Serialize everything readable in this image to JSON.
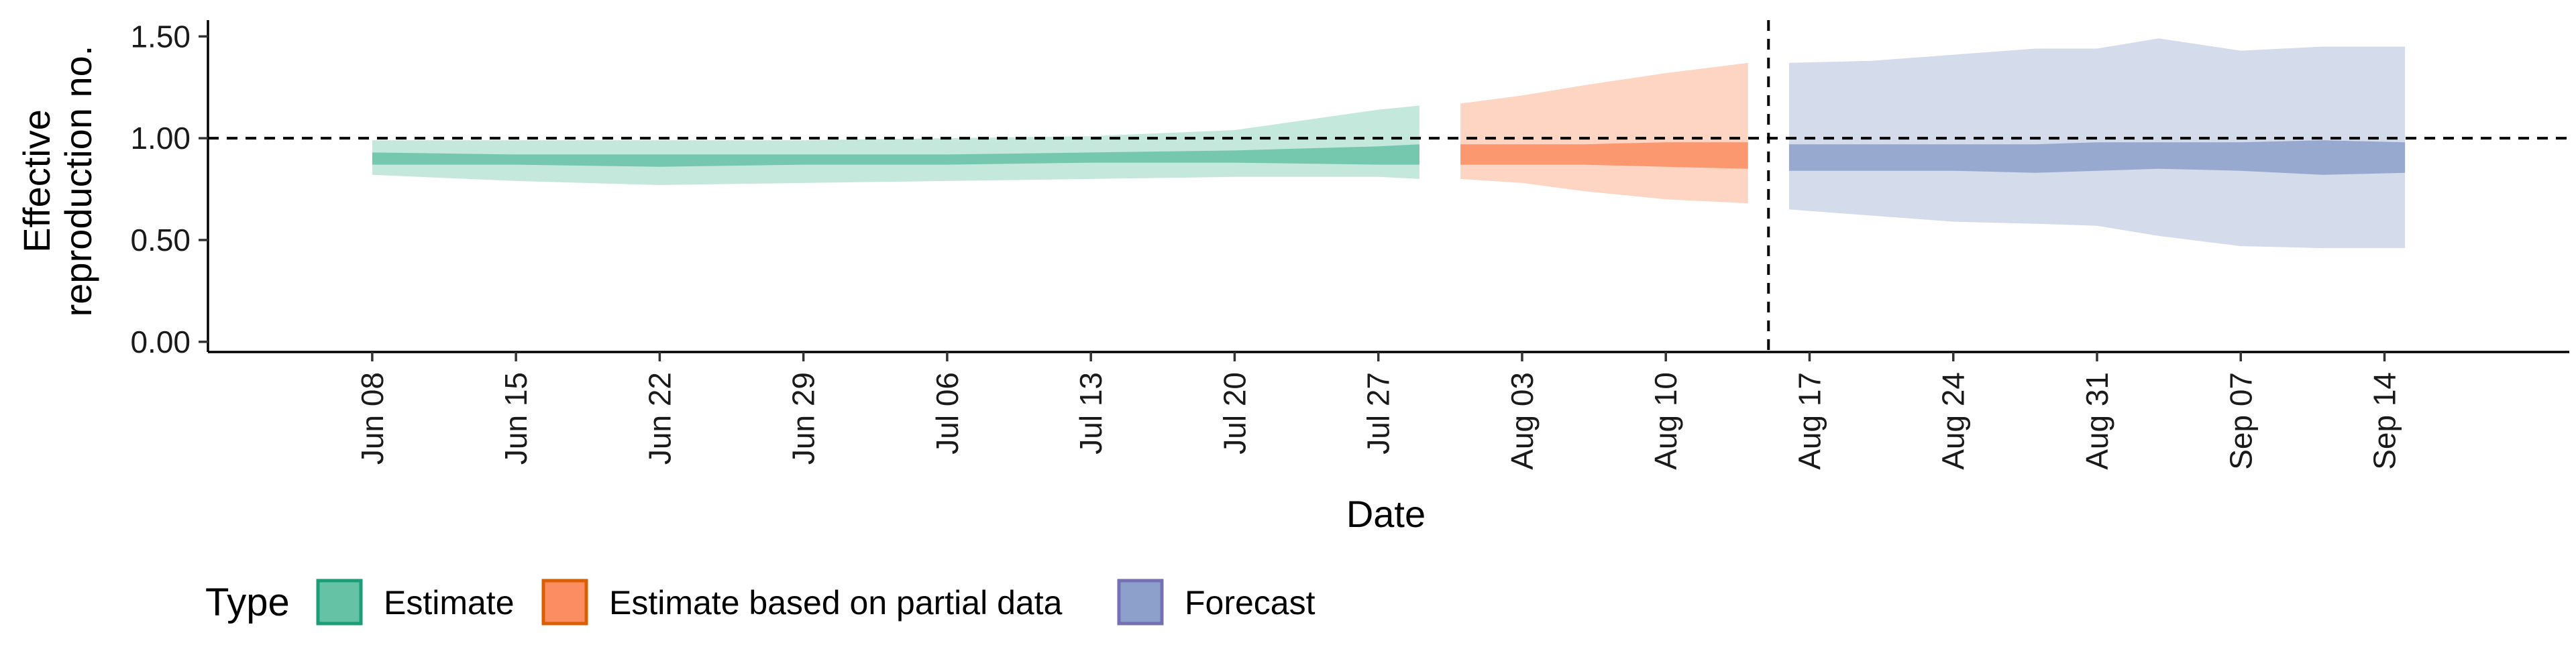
{
  "chart_data": {
    "type": "area",
    "title": "",
    "xlabel": "Date",
    "ylabel_lines": [
      "Effective",
      "reproduction no."
    ],
    "ylim": [
      -0.05,
      1.58
    ],
    "y_ticks": [
      0,
      0.5,
      1,
      1.5
    ],
    "y_tick_labels": [
      "0.00",
      "0.50",
      "1.00",
      "1.50"
    ],
    "x_range": [
      "2020-05-31",
      "2020-09-23"
    ],
    "x_ticks": [
      "2020-06-08",
      "2020-06-15",
      "2020-06-22",
      "2020-06-29",
      "2020-07-06",
      "2020-07-13",
      "2020-07-20",
      "2020-07-27",
      "2020-08-03",
      "2020-08-10",
      "2020-08-17",
      "2020-08-24",
      "2020-08-31",
      "2020-09-07",
      "2020-09-14"
    ],
    "x_tick_labels": [
      "Jun 08",
      "Jun 15",
      "Jun 22",
      "Jun 29",
      "Jul 06",
      "Jul 13",
      "Jul 20",
      "Jul 27",
      "Aug 03",
      "Aug 10",
      "Aug 17",
      "Aug 24",
      "Aug 31",
      "Sep 07",
      "Sep 14"
    ],
    "reference_line_y": 1.0,
    "forecast_date_line": "2020-08-15",
    "grid": false,
    "legend": {
      "position": "bottom-left",
      "title": "Type",
      "entries": [
        "Estimate",
        "Estimate based on partial data",
        "Forecast"
      ]
    },
    "series": [
      {
        "name": "Estimate",
        "color": "#1b9e77",
        "fill": "#66c2a5",
        "points": [
          {
            "date": "2020-06-08",
            "lower_90": 0.82,
            "lower_50": 0.87,
            "upper_50": 0.93,
            "upper_90": 0.99
          },
          {
            "date": "2020-06-15",
            "lower_90": 0.79,
            "lower_50": 0.87,
            "upper_50": 0.92,
            "upper_90": 0.99
          },
          {
            "date": "2020-06-22",
            "lower_90": 0.77,
            "lower_50": 0.86,
            "upper_50": 0.92,
            "upper_90": 0.99
          },
          {
            "date": "2020-06-29",
            "lower_90": 0.78,
            "lower_50": 0.87,
            "upper_50": 0.92,
            "upper_90": 0.99
          },
          {
            "date": "2020-07-06",
            "lower_90": 0.79,
            "lower_50": 0.87,
            "upper_50": 0.92,
            "upper_90": 1.0
          },
          {
            "date": "2020-07-13",
            "lower_90": 0.8,
            "lower_50": 0.88,
            "upper_50": 0.93,
            "upper_90": 1.01
          },
          {
            "date": "2020-07-20",
            "lower_90": 0.81,
            "lower_50": 0.88,
            "upper_50": 0.94,
            "upper_90": 1.04
          },
          {
            "date": "2020-07-27",
            "lower_90": 0.81,
            "lower_50": 0.87,
            "upper_50": 0.96,
            "upper_90": 1.14
          },
          {
            "date": "2020-07-29",
            "lower_90": 0.8,
            "lower_50": 0.87,
            "upper_50": 0.97,
            "upper_90": 1.16
          }
        ]
      },
      {
        "name": "Estimate based on partial data",
        "color": "#d95f02",
        "fill": "#fc8d62",
        "points": [
          {
            "date": "2020-07-31",
            "lower_90": 0.8,
            "lower_50": 0.87,
            "upper_50": 0.97,
            "upper_90": 1.17
          },
          {
            "date": "2020-08-03",
            "lower_90": 0.78,
            "lower_50": 0.87,
            "upper_50": 0.97,
            "upper_90": 1.21
          },
          {
            "date": "2020-08-06",
            "lower_90": 0.74,
            "lower_50": 0.87,
            "upper_50": 0.97,
            "upper_90": 1.26
          },
          {
            "date": "2020-08-10",
            "lower_90": 0.7,
            "lower_50": 0.86,
            "upper_50": 0.98,
            "upper_90": 1.32
          },
          {
            "date": "2020-08-14",
            "lower_90": 0.68,
            "lower_50": 0.85,
            "upper_50": 0.98,
            "upper_90": 1.37
          }
        ]
      },
      {
        "name": "Forecast",
        "color": "#7570b3",
        "fill": "#8da0cb",
        "points": [
          {
            "date": "2020-08-16",
            "lower_90": 0.65,
            "lower_50": 0.84,
            "upper_50": 0.97,
            "upper_90": 1.37
          },
          {
            "date": "2020-08-20",
            "lower_90": 0.62,
            "lower_50": 0.84,
            "upper_50": 0.97,
            "upper_90": 1.38
          },
          {
            "date": "2020-08-24",
            "lower_90": 0.59,
            "lower_50": 0.84,
            "upper_50": 0.97,
            "upper_90": 1.41
          },
          {
            "date": "2020-08-28",
            "lower_90": 0.58,
            "lower_50": 0.83,
            "upper_50": 0.97,
            "upper_90": 1.44
          },
          {
            "date": "2020-08-31",
            "lower_90": 0.57,
            "lower_50": 0.84,
            "upper_50": 0.98,
            "upper_90": 1.44
          },
          {
            "date": "2020-09-03",
            "lower_90": 0.52,
            "lower_50": 0.85,
            "upper_50": 0.98,
            "upper_90": 1.49
          },
          {
            "date": "2020-09-07",
            "lower_90": 0.47,
            "lower_50": 0.84,
            "upper_50": 0.98,
            "upper_90": 1.43
          },
          {
            "date": "2020-09-11",
            "lower_90": 0.46,
            "lower_50": 0.82,
            "upper_50": 0.99,
            "upper_90": 1.45
          },
          {
            "date": "2020-09-15",
            "lower_90": 0.46,
            "lower_50": 0.83,
            "upper_50": 0.98,
            "upper_90": 1.45
          }
        ]
      }
    ]
  }
}
